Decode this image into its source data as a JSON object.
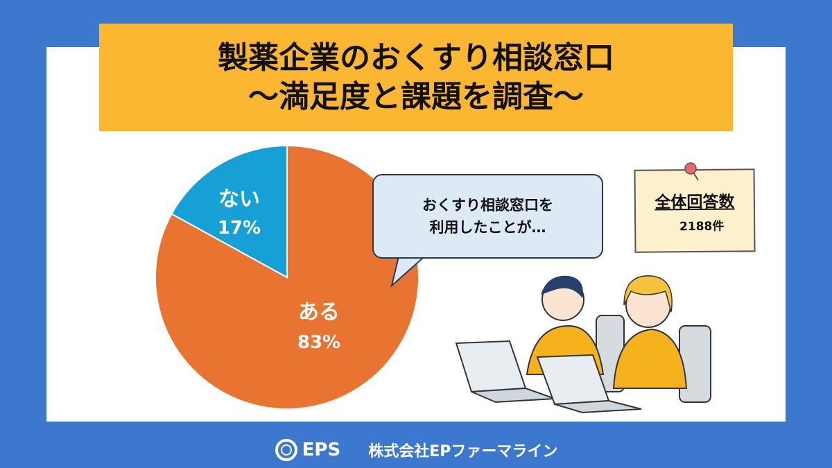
{
  "title": {
    "line1": "製薬企業のおくすり相談窓口",
    "line2": "〜満足度と課題を調査〜"
  },
  "bubble": {
    "line1": "おくすり相談窓口を",
    "line2": "利用したことが…"
  },
  "note": {
    "heading": "全体回答数",
    "value": "2188件"
  },
  "footer": {
    "logo_text": "EPS",
    "company": "株式会社EPファーマライン"
  },
  "chart_data": {
    "type": "pie",
    "slices": [
      {
        "label": "ある",
        "value": 83,
        "display": "83%",
        "color": "#e97432"
      },
      {
        "label": "ない",
        "value": 17,
        "display": "17%",
        "color": "#16a0d6"
      }
    ]
  },
  "colors": {
    "background": "#3d78cf",
    "title_band": "#fbb731"
  }
}
